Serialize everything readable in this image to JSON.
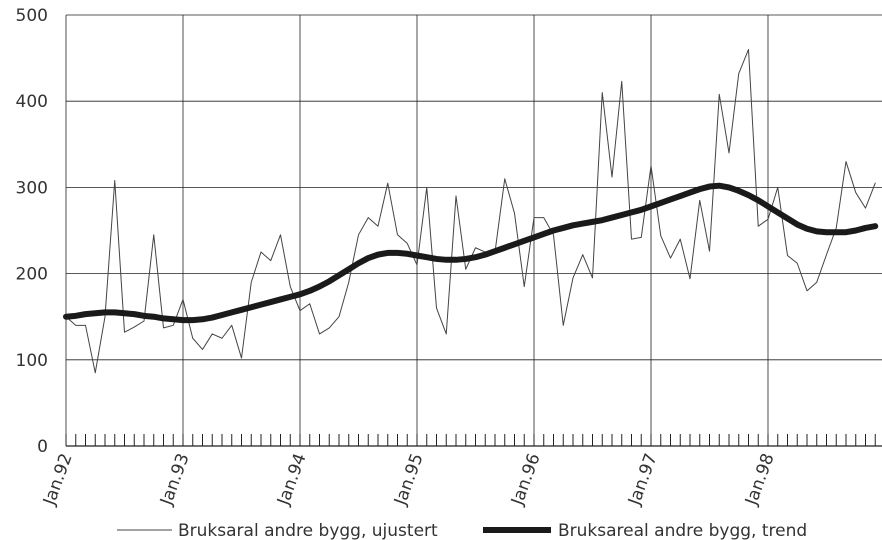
{
  "chart_data": {
    "type": "line",
    "title": "",
    "xlabel": "",
    "ylabel": "",
    "ylim": [
      0,
      500
    ],
    "yticks": [
      0,
      100,
      200,
      300,
      400,
      500
    ],
    "grid": true,
    "legend_position": "bottom",
    "x_start": "1992-01",
    "x_tick_labels": [
      "Jan.92",
      "Jan.93",
      "Jan.94",
      "Jan.95",
      "Jan.96",
      "Jan.97",
      "Jan.98"
    ],
    "series": [
      {
        "name": "Bruksaral andre bygg, ujustert",
        "color": "#444444",
        "style": "thin",
        "values": [
          150,
          140,
          140,
          85,
          150,
          308,
          132,
          138,
          145,
          245,
          137,
          140,
          170,
          125,
          112,
          130,
          125,
          140,
          102,
          190,
          225,
          215,
          245,
          185,
          157,
          165,
          130,
          137,
          150,
          190,
          245,
          265,
          255,
          305,
          245,
          235,
          210,
          300,
          160,
          130,
          290,
          205,
          230,
          225,
          225,
          310,
          270,
          185,
          265,
          265,
          245,
          140,
          195,
          222,
          195,
          410,
          312,
          423,
          240,
          242,
          325,
          244,
          218,
          240,
          194,
          285,
          226,
          408,
          340,
          432,
          460,
          255,
          263,
          300,
          221,
          212,
          180,
          190,
          222,
          253,
          330,
          294,
          276,
          305
        ]
      },
      {
        "name": "Bruksareal andre  bygg, trend",
        "color": "#1a1a1a",
        "style": "thick",
        "values": [
          150,
          151,
          153,
          154,
          155,
          155,
          154,
          153,
          151,
          150,
          148,
          147,
          146,
          146,
          147,
          149,
          152,
          155,
          158,
          161,
          164,
          167,
          170,
          173,
          176,
          180,
          185,
          191,
          198,
          205,
          212,
          218,
          222,
          224,
          224,
          223,
          221,
          219,
          217,
          216,
          216,
          217,
          219,
          222,
          226,
          230,
          234,
          238,
          242,
          246,
          250,
          253,
          256,
          258,
          260,
          262,
          265,
          268,
          271,
          274,
          278,
          282,
          286,
          290,
          294,
          298,
          301,
          302,
          300,
          296,
          291,
          285,
          278,
          271,
          264,
          257,
          252,
          249,
          248,
          248,
          248,
          250,
          253,
          255
        ]
      }
    ]
  }
}
